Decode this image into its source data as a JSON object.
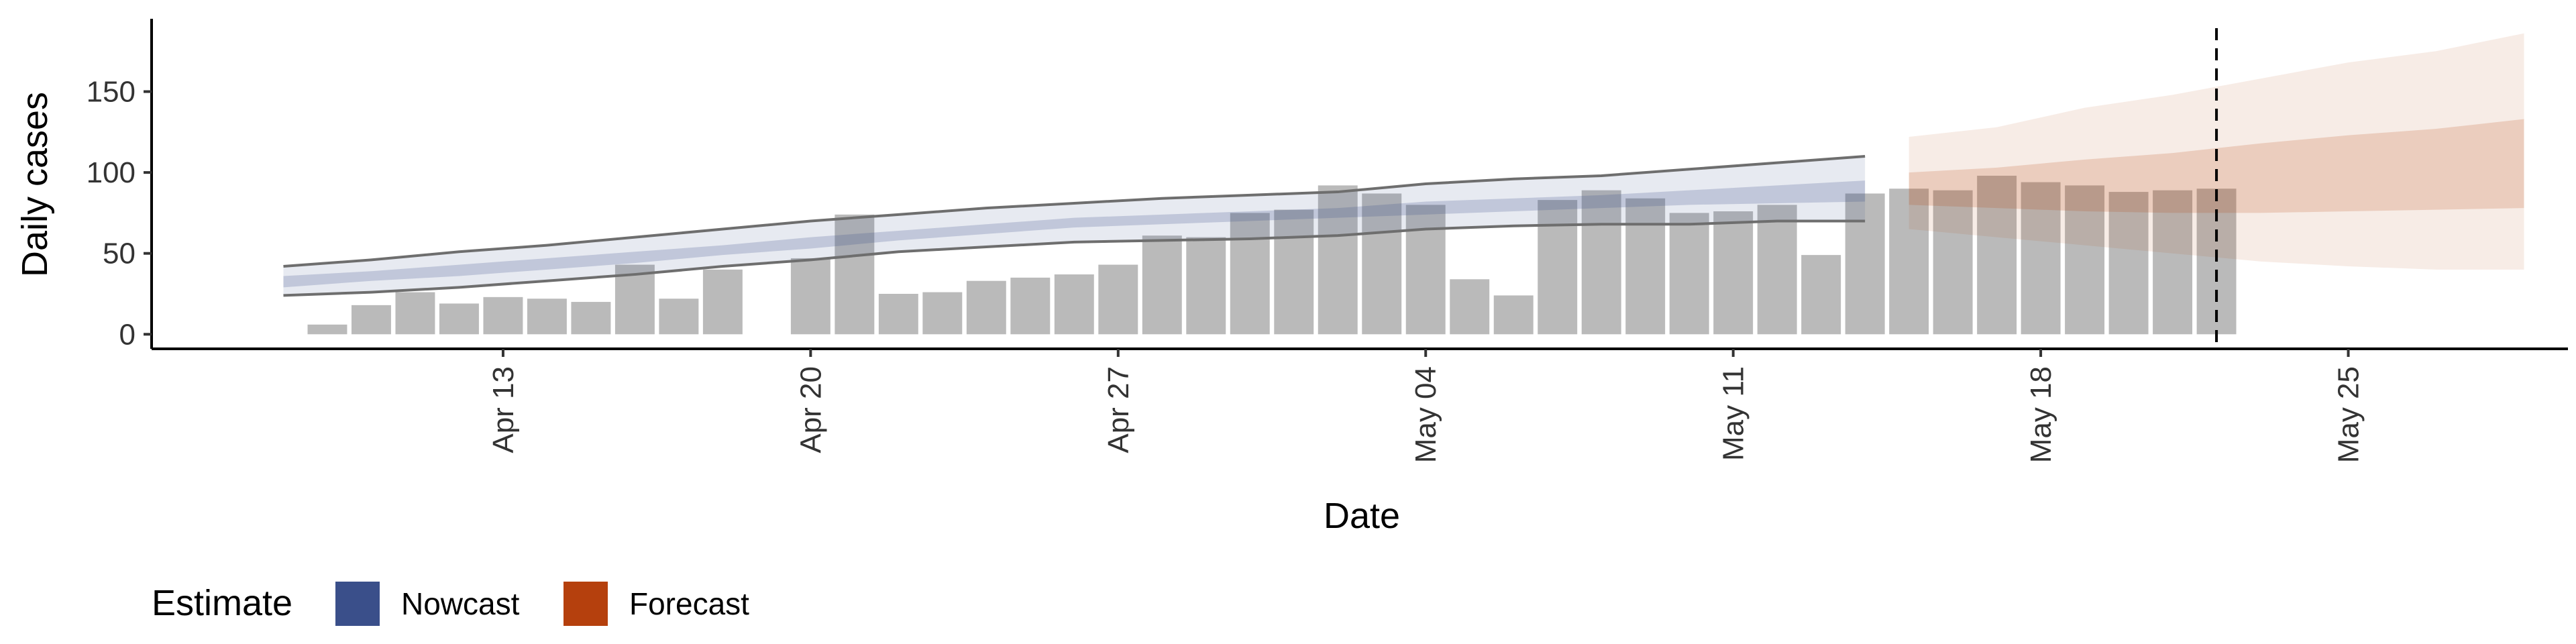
{
  "chart_data": {
    "type": "bar",
    "ylabel": "Daily cases",
    "xlabel": "Date",
    "ylim": [
      -9,
      195
    ],
    "xlim": [
      "2020-04-05",
      "2020-05-30"
    ],
    "y_ticks": [
      0,
      50,
      100,
      150
    ],
    "x_ticks": [
      {
        "date": "2020-04-13",
        "label": "Apr 13"
      },
      {
        "date": "2020-04-20",
        "label": "Apr 20"
      },
      {
        "date": "2020-04-27",
        "label": "Apr 27"
      },
      {
        "date": "2020-05-04",
        "label": "May 04"
      },
      {
        "date": "2020-05-11",
        "label": "May 11"
      },
      {
        "date": "2020-05-18",
        "label": "May 18"
      },
      {
        "date": "2020-05-25",
        "label": "May 25"
      }
    ],
    "forecast_date": "2020-05-22",
    "observed": {
      "dates": [
        "2020-04-09",
        "2020-04-10",
        "2020-04-11",
        "2020-04-12",
        "2020-04-13",
        "2020-04-14",
        "2020-04-15",
        "2020-04-16",
        "2020-04-17",
        "2020-04-18",
        "2020-04-19",
        "2020-04-20",
        "2020-04-21",
        "2020-04-22",
        "2020-04-23",
        "2020-04-24",
        "2020-04-25",
        "2020-04-26",
        "2020-04-27",
        "2020-04-28",
        "2020-04-29",
        "2020-04-30",
        "2020-05-01",
        "2020-05-02",
        "2020-05-03",
        "2020-05-04",
        "2020-05-05",
        "2020-05-06",
        "2020-05-07",
        "2020-05-08",
        "2020-05-09",
        "2020-05-10",
        "2020-05-11",
        "2020-05-12",
        "2020-05-13",
        "2020-05-14",
        "2020-05-15",
        "2020-05-16",
        "2020-05-17",
        "2020-05-18",
        "2020-05-19",
        "2020-05-20",
        "2020-05-21",
        "2020-05-22",
        "2020-05-23"
      ],
      "values": [
        6,
        18,
        26,
        19,
        23,
        22,
        20,
        43,
        22,
        40,
        0,
        47,
        74,
        25,
        26,
        33,
        35,
        37,
        43,
        61,
        60,
        75,
        77,
        92,
        87,
        80,
        34,
        24,
        83,
        89,
        84,
        75,
        76,
        80,
        49,
        87,
        90,
        89,
        98,
        94,
        92,
        88,
        89,
        90,
        0
      ]
    },
    "series": [
      {
        "name": "Nowcast",
        "color": "#3a4f8a",
        "dates": [
          "2020-04-08",
          "2020-04-10",
          "2020-04-12",
          "2020-04-14",
          "2020-04-16",
          "2020-04-18",
          "2020-04-20",
          "2020-04-22",
          "2020-04-24",
          "2020-04-26",
          "2020-04-28",
          "2020-04-30",
          "2020-05-02",
          "2020-05-04",
          "2020-05-06",
          "2020-05-08",
          "2020-05-10",
          "2020-05-12",
          "2020-05-14"
        ],
        "lower90": [
          24,
          26,
          29,
          33,
          37,
          42,
          46,
          51,
          54,
          57,
          58,
          59,
          61,
          65,
          67,
          68,
          68,
          70,
          70
        ],
        "upper90": [
          42,
          46,
          51,
          55,
          60,
          65,
          70,
          74,
          78,
          81,
          84,
          86,
          88,
          93,
          96,
          98,
          102,
          106,
          110
        ],
        "lower50": [
          29,
          33,
          36,
          40,
          44,
          49,
          53,
          58,
          62,
          66,
          68,
          70,
          72,
          74,
          76,
          78,
          80,
          81,
          82
        ],
        "upper50": [
          36,
          39,
          43,
          47,
          51,
          55,
          60,
          64,
          68,
          72,
          74,
          76,
          78,
          82,
          84,
          86,
          89,
          92,
          95
        ]
      },
      {
        "name": "Forecast",
        "color": "#b5400d",
        "dates": [
          "2020-05-15",
          "2020-05-17",
          "2020-05-19",
          "2020-05-21",
          "2020-05-23",
          "2020-05-25",
          "2020-05-27",
          "2020-05-29"
        ],
        "lower90": [
          65,
          60,
          55,
          50,
          45,
          42,
          40,
          40
        ],
        "upper90": [
          122,
          128,
          140,
          148,
          158,
          168,
          175,
          186
        ],
        "lower50": [
          80,
          78,
          76,
          75,
          75,
          76,
          77,
          78
        ],
        "upper50": [
          100,
          103,
          108,
          112,
          118,
          123,
          127,
          133
        ]
      }
    ],
    "legend": {
      "title": "Estimate",
      "position": "bottom-left",
      "items": [
        "Nowcast",
        "Forecast"
      ]
    },
    "grid": false
  }
}
